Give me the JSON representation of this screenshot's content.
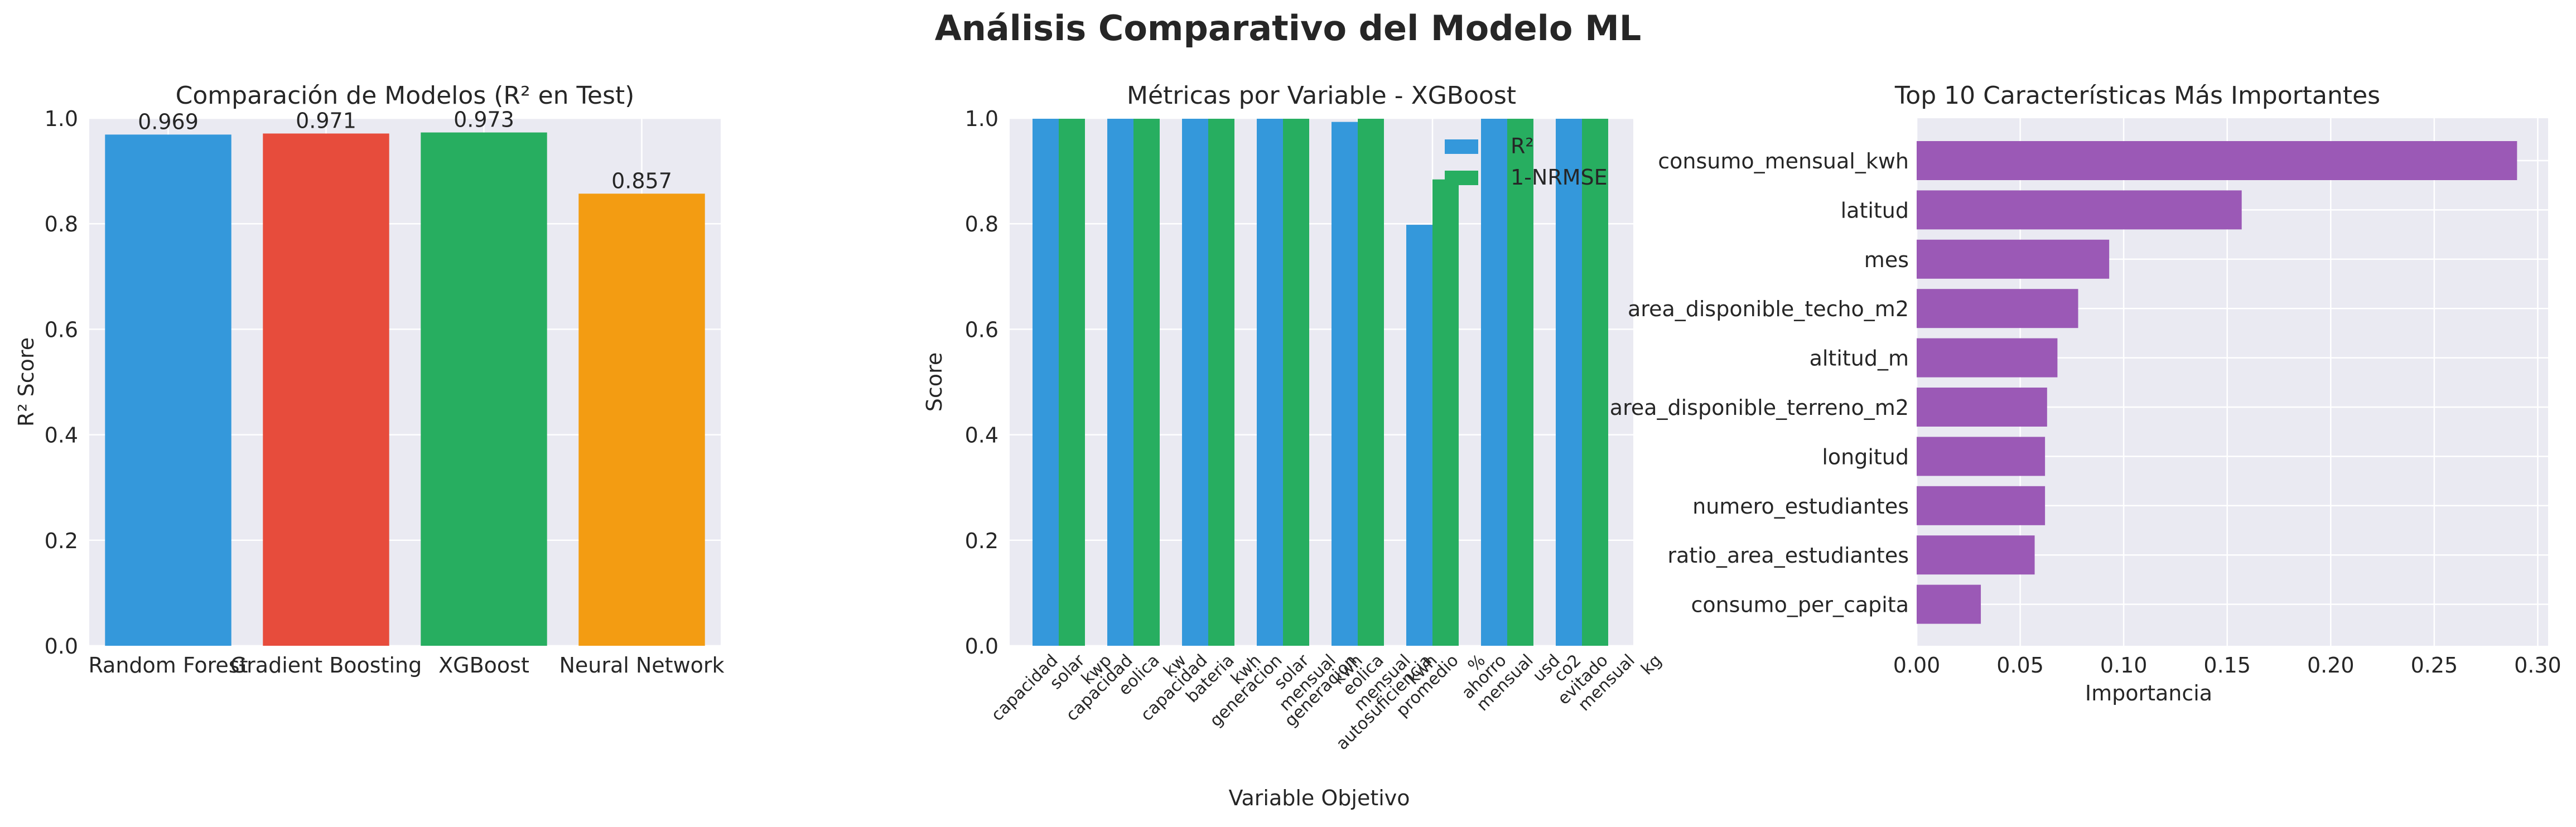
{
  "suptitle": "Análisis Comparativo del Modelo ML",
  "colors": {
    "plot_bg": "#eaeaf2",
    "grid": "#ffffff",
    "text": "#262626",
    "blue": "#3498db",
    "red": "#e74c3c",
    "green": "#27ae60",
    "orange": "#f39c12",
    "purple": "#9b59b6"
  },
  "chart_data": [
    {
      "type": "bar",
      "title": "Comparación de Modelos (R² en Test)",
      "xlabel": "",
      "ylabel": "R² Score",
      "ylim": [
        0,
        1.0
      ],
      "yticks": [
        "0.0",
        "0.2",
        "0.4",
        "0.6",
        "0.8",
        "1.0"
      ],
      "categories": [
        "Random Forest",
        "Gradient Boosting",
        "XGBoost",
        "Neural Network"
      ],
      "values": [
        0.969,
        0.971,
        0.973,
        0.857
      ],
      "value_labels": [
        "0.969",
        "0.971",
        "0.973",
        "0.857"
      ],
      "bar_colors": [
        "#3498db",
        "#e74c3c",
        "#27ae60",
        "#f39c12"
      ],
      "grid": true
    },
    {
      "type": "bar",
      "title": "Métricas por Variable - XGBoost",
      "xlabel": "Variable Objetivo",
      "ylabel": "Score",
      "ylim": [
        0,
        1.0
      ],
      "yticks": [
        "0.0",
        "0.2",
        "0.4",
        "0.6",
        "0.8",
        "1.0"
      ],
      "categories": [
        "capacidad solar kwp",
        "capacidad eolica kw",
        "capacidad bateria kwh",
        "generacion solar mensual kwh",
        "generacion eolica mensual kwh",
        "autosuficiencia promedio %",
        "ahorro mensual usd",
        "co2 evitado mensual kg"
      ],
      "series": [
        {
          "name": "R²",
          "color": "#3498db",
          "values": [
            0.999,
            0.999,
            0.999,
            0.999,
            0.993,
            0.798,
            0.999,
            0.999
          ]
        },
        {
          "name": "1-NRMSE",
          "color": "#27ae60",
          "values": [
            0.999,
            0.999,
            0.999,
            0.999,
            0.999,
            0.884,
            0.999,
            0.999
          ]
        }
      ],
      "legend": "top-right",
      "grid": true
    },
    {
      "type": "barh",
      "title": "Top 10 Características Más Importantes",
      "xlabel": "Importancia",
      "ylabel": "",
      "xlim": [
        0,
        0.305
      ],
      "xticks": [
        "0.00",
        "0.05",
        "0.10",
        "0.15",
        "0.20",
        "0.25",
        "0.30"
      ],
      "categories": [
        "consumo_mensual_kwh",
        "latitud",
        "mes",
        "area_disponible_techo_m2",
        "altitud_m",
        "area_disponible_terreno_m2",
        "longitud",
        "numero_estudiantes",
        "ratio_area_estudiantes",
        "consumo_per_capita"
      ],
      "values": [
        0.29,
        0.157,
        0.093,
        0.078,
        0.068,
        0.063,
        0.062,
        0.062,
        0.057,
        0.031
      ],
      "bar_color": "#9b59b6",
      "grid": true
    }
  ]
}
